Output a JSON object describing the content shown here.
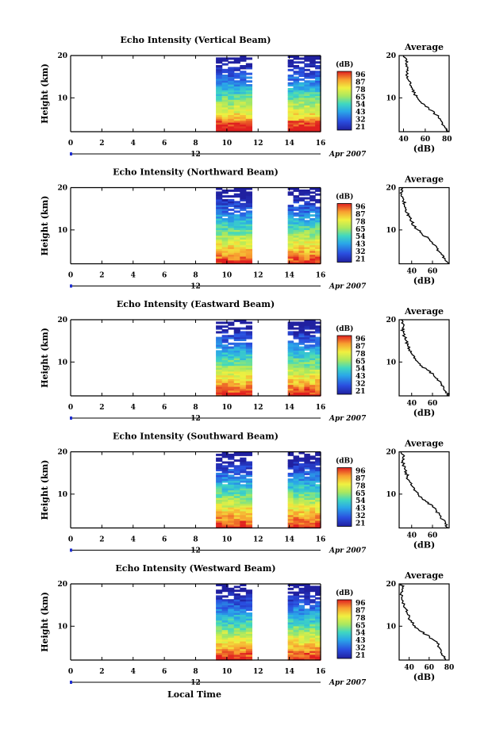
{
  "figure": {
    "date_label": "Apr 2007",
    "xlabel": "Local Time",
    "ylabel": "Height (km)",
    "day_label": "12",
    "colorbar_unit": "(dB)",
    "colorbar_labels": [
      "96",
      "87",
      "78",
      "65",
      "54",
      "43",
      "32",
      "21"
    ],
    "avg_title": "Average",
    "avg_xlabel": "(dB)"
  },
  "chart_data": [
    {
      "type": "heatmap",
      "title": "Echo Intensity (Vertical Beam)",
      "xlim": [
        0,
        16
      ],
      "ylim": [
        2,
        20
      ],
      "xticks": [
        "0",
        "2",
        "4",
        "6",
        "8",
        "10",
        "12",
        "14",
        "16"
      ],
      "yticks": [
        "10",
        "20"
      ],
      "data_blocks": [
        [
          9.3,
          11.6
        ],
        [
          13.9,
          16
        ]
      ],
      "avg_xticks": [
        "40",
        "60",
        "80"
      ],
      "avg_xlim": [
        36,
        82
      ],
      "avg_profile": [
        [
          82,
          2
        ],
        [
          78,
          3
        ],
        [
          76,
          4
        ],
        [
          74,
          5
        ],
        [
          70,
          6
        ],
        [
          66,
          7
        ],
        [
          60,
          8
        ],
        [
          56,
          9
        ],
        [
          53,
          10
        ],
        [
          50,
          11
        ],
        [
          48,
          12
        ],
        [
          46,
          13
        ],
        [
          45,
          14
        ],
        [
          44,
          15
        ],
        [
          43,
          16
        ],
        [
          44,
          17
        ],
        [
          42,
          18
        ],
        [
          43,
          19
        ],
        [
          40,
          20
        ]
      ]
    },
    {
      "type": "heatmap",
      "title": "Echo Intensity (Northward Beam)",
      "xlim": [
        0,
        16
      ],
      "ylim": [
        2,
        20
      ],
      "xticks": [
        "0",
        "2",
        "4",
        "6",
        "8",
        "10",
        "12",
        "14",
        "16"
      ],
      "yticks": [
        "10",
        "20"
      ],
      "data_blocks": [
        [
          9.3,
          11.6
        ],
        [
          13.9,
          16
        ]
      ],
      "avg_xticks": [
        "40",
        "60"
      ],
      "avg_xlim": [
        28,
        76
      ],
      "avg_profile": [
        [
          76,
          2
        ],
        [
          72,
          3
        ],
        [
          70,
          4
        ],
        [
          66,
          5
        ],
        [
          64,
          6
        ],
        [
          60,
          7
        ],
        [
          56,
          8
        ],
        [
          50,
          9
        ],
        [
          46,
          10
        ],
        [
          42,
          11
        ],
        [
          40,
          12
        ],
        [
          38,
          13
        ],
        [
          36,
          14
        ],
        [
          34,
          15
        ],
        [
          33,
          16
        ],
        [
          32,
          17
        ],
        [
          30,
          18
        ],
        [
          31,
          19
        ],
        [
          30,
          20
        ]
      ]
    },
    {
      "type": "heatmap",
      "title": "Echo Intensity (Eastward Beam)",
      "xlim": [
        0,
        16
      ],
      "ylim": [
        2,
        20
      ],
      "xticks": [
        "0",
        "2",
        "4",
        "6",
        "8",
        "10",
        "12",
        "14",
        "16"
      ],
      "yticks": [
        "10",
        "20"
      ],
      "data_blocks": [
        [
          9.3,
          11.6
        ],
        [
          13.9,
          16
        ]
      ],
      "avg_xticks": [
        "40",
        "60"
      ],
      "avg_xlim": [
        28,
        76
      ],
      "avg_profile": [
        [
          76,
          2
        ],
        [
          73,
          3
        ],
        [
          71,
          4
        ],
        [
          68,
          5
        ],
        [
          65,
          6
        ],
        [
          61,
          7
        ],
        [
          56,
          8
        ],
        [
          50,
          9
        ],
        [
          46,
          10
        ],
        [
          42,
          11
        ],
        [
          40,
          12
        ],
        [
          38,
          13
        ],
        [
          36,
          14
        ],
        [
          35,
          15
        ],
        [
          33,
          16
        ],
        [
          32,
          17
        ],
        [
          31,
          18
        ],
        [
          32,
          19
        ],
        [
          30,
          20
        ]
      ]
    },
    {
      "type": "heatmap",
      "title": "Echo Intensity (Southward Beam)",
      "xlim": [
        0,
        16
      ],
      "ylim": [
        2,
        20
      ],
      "xticks": [
        "0",
        "2",
        "4",
        "6",
        "8",
        "10",
        "12",
        "14",
        "16"
      ],
      "yticks": [
        "10",
        "20"
      ],
      "data_blocks": [
        [
          9.3,
          11.6
        ],
        [
          13.9,
          16
        ]
      ],
      "avg_xticks": [
        "40",
        "60"
      ],
      "avg_xlim": [
        28,
        76
      ],
      "avg_profile": [
        [
          75,
          2
        ],
        [
          72,
          3
        ],
        [
          70,
          4
        ],
        [
          67,
          5
        ],
        [
          64,
          6
        ],
        [
          60,
          7
        ],
        [
          56,
          8
        ],
        [
          50,
          9
        ],
        [
          46,
          10
        ],
        [
          42,
          11
        ],
        [
          40,
          12
        ],
        [
          38,
          13
        ],
        [
          36,
          14
        ],
        [
          35,
          15
        ],
        [
          33,
          16
        ],
        [
          32,
          17
        ],
        [
          31,
          18
        ],
        [
          33,
          19
        ],
        [
          30,
          20
        ]
      ]
    },
    {
      "type": "heatmap",
      "title": "Echo Intensity (Westward Beam)",
      "xlim": [
        0,
        16
      ],
      "ylim": [
        2,
        20
      ],
      "xticks": [
        "0",
        "2",
        "4",
        "6",
        "8",
        "10",
        "12",
        "14",
        "16"
      ],
      "yticks": [
        "10",
        "20"
      ],
      "data_blocks": [
        [
          9.3,
          11.6
        ],
        [
          13.9,
          16
        ]
      ],
      "avg_xticks": [
        "40",
        "60",
        "80"
      ],
      "avg_xlim": [
        30,
        80
      ],
      "avg_profile": [
        [
          76,
          2
        ],
        [
          74,
          3
        ],
        [
          72,
          4
        ],
        [
          70,
          5
        ],
        [
          68,
          6
        ],
        [
          63,
          7
        ],
        [
          57,
          8
        ],
        [
          50,
          9
        ],
        [
          46,
          10
        ],
        [
          42,
          11
        ],
        [
          40,
          12
        ],
        [
          38,
          13
        ],
        [
          37,
          14
        ],
        [
          35,
          15
        ],
        [
          34,
          16
        ],
        [
          33,
          17
        ],
        [
          32,
          18
        ],
        [
          34,
          19
        ],
        [
          32,
          20
        ]
      ]
    }
  ]
}
